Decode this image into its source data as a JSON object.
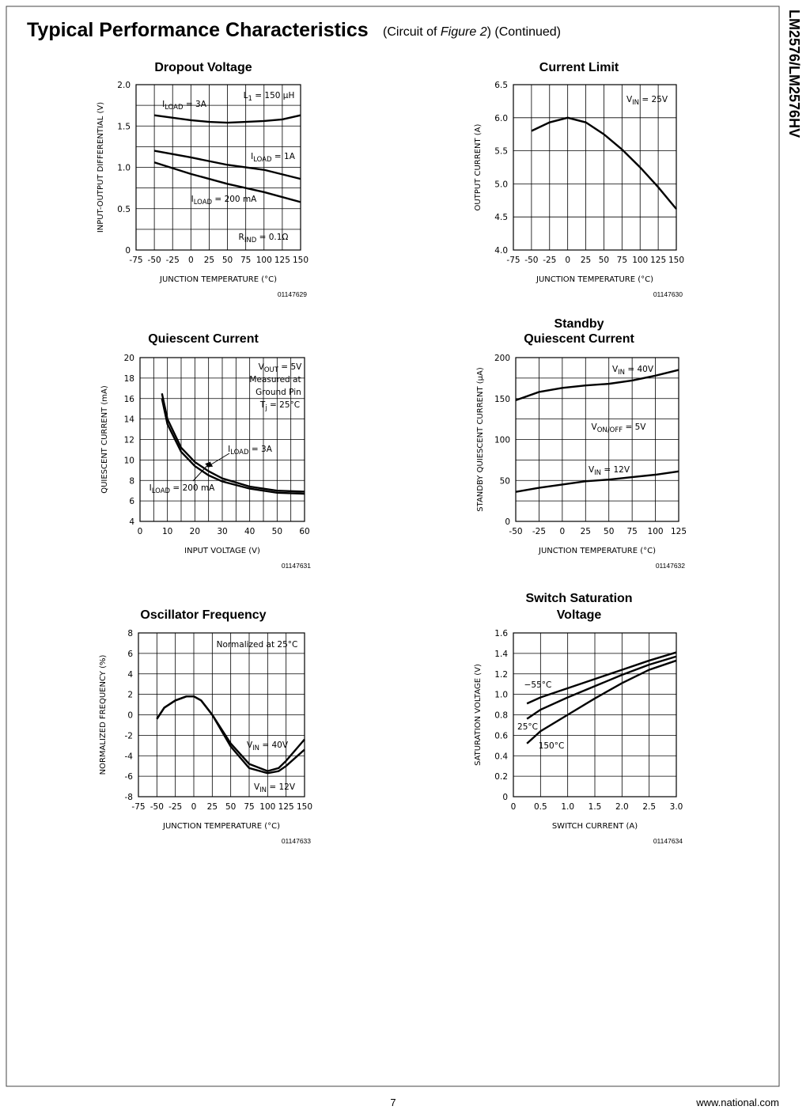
{
  "header": {
    "title": "Typical Performance Characteristics",
    "subtitle": [
      "(Circuit of ",
      "Figure 2",
      ")  (Continued)"
    ]
  },
  "side_label": "LM2576/LM2576HV",
  "footer": {
    "page": "7",
    "site": "www.national.com"
  },
  "chart_data": [
    {
      "type": "line",
      "title": [
        "Dropout Voltage"
      ],
      "xlabel": "JUNCTION TEMPERATURE (°C)",
      "ylabel": "INPUT-OUTPUT DIFFERENTIAL (V)",
      "figure": "01147629",
      "xlim": [
        -75,
        150
      ],
      "ylim": [
        0,
        2
      ],
      "xticks": [
        -75,
        -50,
        -25,
        0,
        25,
        50,
        75,
        100,
        125,
        150
      ],
      "yticks": [
        0,
        0.5,
        {
          "value": 1,
          "label": "1.0"
        },
        1.5,
        {
          "value": 2,
          "label": "2.0"
        }
      ],
      "grid": {
        "x": "major",
        "y": "minor"
      },
      "series": [
        {
          "color": "#000000",
          "x": [
            -50,
            -25,
            0,
            25,
            50,
            75,
            100,
            125,
            150
          ],
          "values": [
            1.63,
            1.6,
            1.57,
            1.55,
            1.54,
            1.55,
            1.56,
            1.58,
            1.63
          ]
        },
        {
          "color": "#000000",
          "x": [
            -50,
            0,
            50,
            100,
            150
          ],
          "values": [
            1.2,
            1.12,
            1.03,
            0.97,
            0.86
          ]
        },
        {
          "color": "#000000",
          "x": [
            -50,
            0,
            50,
            100,
            150
          ],
          "values": [
            1.06,
            0.92,
            0.8,
            0.7,
            0.58
          ]
        }
      ],
      "annotations": [
        {
          "parts": [
            "L",
            "1",
            "  =  150 µH"
          ]
        },
        {
          "parts": [
            "I",
            "LOAD",
            " = 3A"
          ]
        },
        {
          "parts": [
            "I",
            "LOAD",
            " = 1A"
          ]
        },
        {
          "parts": [
            "I",
            "LOAD",
            " = 200 mA"
          ]
        },
        {
          "parts": [
            "R",
            "IND",
            " = 0.1Ω"
          ]
        }
      ]
    },
    {
      "type": "line",
      "title": [
        "Current Limit"
      ],
      "xlabel": "JUNCTION TEMPERATURE (°C)",
      "ylabel": "OUTPUT CURRENT (A)",
      "figure": "01147630",
      "xlim": [
        -75,
        150
      ],
      "ylim": [
        4,
        6.5
      ],
      "xticks": [
        -75,
        -50,
        -25,
        0,
        25,
        50,
        75,
        100,
        125,
        150
      ],
      "yticks": [
        {
          "value": 4,
          "label": "4.0"
        },
        4.5,
        {
          "value": 5,
          "label": "5.0"
        },
        5.5,
        {
          "value": 6,
          "label": "6.0"
        },
        6.5
      ],
      "grid": {
        "x": "major",
        "y": "major"
      },
      "series": [
        {
          "color": "#000000",
          "x": [
            -50,
            -25,
            0,
            25,
            50,
            75,
            100,
            125,
            150
          ],
          "values": [
            5.8,
            5.93,
            6.0,
            5.93,
            5.75,
            5.52,
            5.25,
            4.95,
            4.62
          ]
        }
      ],
      "annotations": [
        {
          "parts": [
            "V",
            "IN",
            "  =  25V"
          ]
        }
      ]
    },
    {
      "type": "line",
      "title": [
        "Quiescent Current"
      ],
      "xlabel": "INPUT VOLTAGE (V)",
      "ylabel": "QUIESCENT CURRENT (mA)",
      "figure": "01147631",
      "xlim": [
        0,
        60
      ],
      "ylim": [
        4,
        20
      ],
      "xticks": [
        0,
        10,
        20,
        30,
        40,
        50,
        60
      ],
      "yticks": [
        4,
        6,
        8,
        10,
        12,
        14,
        16,
        18,
        20
      ],
      "grid": {
        "x": "minor",
        "y": "major"
      },
      "series": [
        {
          "color": "#000000",
          "x": [
            8,
            10,
            15,
            20,
            25,
            30,
            40,
            50,
            60
          ],
          "values": [
            16.5,
            14,
            11.2,
            9.8,
            8.9,
            8.2,
            7.4,
            7.0,
            6.9
          ]
        },
        {
          "color": "#000000",
          "x": [
            8,
            10,
            15,
            20,
            25,
            30,
            40,
            50,
            60
          ],
          "values": [
            16,
            13.5,
            10.8,
            9.4,
            8.5,
            7.9,
            7.2,
            6.8,
            6.7
          ]
        }
      ],
      "annotations": [
        {
          "parts": [
            "V",
            "OUT",
            " = 5V"
          ]
        },
        {
          "parts": [
            "Measured at"
          ]
        },
        {
          "parts": [
            "Ground Pin"
          ]
        },
        {
          "parts": [
            "T",
            "j",
            " = 25°C"
          ]
        },
        {
          "parts": [
            "I",
            "LOAD",
            " = 3A"
          ]
        },
        {
          "parts": [
            "I",
            "LOAD",
            " = 200 mA"
          ]
        }
      ]
    },
    {
      "type": "line",
      "title": [
        "Standby",
        "Quiescent Current"
      ],
      "xlabel": "JUNCTION TEMPERATURE (°C)",
      "ylabel": "STANDBY QUIESCENT CURRENT (µA)",
      "figure": "01147632",
      "xlim": [
        -50,
        125
      ],
      "ylim": [
        0,
        200
      ],
      "xticks": [
        -50,
        -25,
        0,
        25,
        50,
        75,
        100,
        125
      ],
      "yticks": [
        0,
        50,
        100,
        150,
        200
      ],
      "grid": {
        "x": "major",
        "y": "minor"
      },
      "series": [
        {
          "color": "#000000",
          "x": [
            -50,
            -25,
            0,
            25,
            50,
            75,
            100,
            125
          ],
          "values": [
            148,
            158,
            163,
            166,
            168,
            172,
            178,
            185
          ]
        },
        {
          "color": "#000000",
          "x": [
            -50,
            -25,
            0,
            25,
            50,
            75,
            100,
            125
          ],
          "values": [
            36,
            41,
            45,
            49,
            51,
            54,
            57,
            61
          ]
        }
      ],
      "annotations": [
        {
          "parts": [
            "V",
            "IN",
            " = 40V"
          ]
        },
        {
          "parts": [
            "V",
            "ON/OFF",
            " = 5V"
          ]
        },
        {
          "parts": [
            "V",
            "IN",
            " = 12V"
          ]
        }
      ]
    },
    {
      "type": "line",
      "title": [
        "Oscillator Frequency"
      ],
      "xlabel": "JUNCTION TEMPERATURE (°C)",
      "ylabel": "NORMALIZED FREQUENCY (%)",
      "figure": "01147633",
      "xlim": [
        -75,
        150
      ],
      "ylim": [
        -8,
        8
      ],
      "xticks": [
        -75,
        -50,
        -25,
        0,
        25,
        50,
        75,
        100,
        125,
        150
      ],
      "yticks": [
        -8,
        -6,
        -4,
        -2,
        0,
        2,
        4,
        6,
        8
      ],
      "grid": {
        "x": "major",
        "y": "major"
      },
      "series": [
        {
          "color": "#000000",
          "x": [
            -50,
            -40,
            -25,
            -10,
            0,
            10,
            25,
            50,
            75,
            100,
            115,
            125,
            150
          ],
          "values": [
            -0.4,
            0.7,
            1.4,
            1.8,
            1.8,
            1.4,
            0,
            -2.8,
            -4.8,
            -5.5,
            -5.2,
            -4.5,
            -2.4
          ]
        },
        {
          "color": "#000000",
          "x": [
            -50,
            -40,
            -25,
            -10,
            0,
            10,
            25,
            50,
            75,
            100,
            115,
            125,
            150
          ],
          "values": [
            -0.4,
            0.7,
            1.4,
            1.8,
            1.8,
            1.4,
            0,
            -3.1,
            -5.2,
            -5.7,
            -5.5,
            -5.0,
            -3.4
          ]
        }
      ],
      "annotations": [
        {
          "parts": [
            "Normalized at 25°C"
          ]
        },
        {
          "parts": [
            "V",
            "IN",
            " = 40V"
          ]
        },
        {
          "parts": [
            "V",
            "IN",
            " = 12V"
          ]
        }
      ]
    },
    {
      "type": "line",
      "title": [
        "Switch Saturation",
        "Voltage"
      ],
      "xlabel": "SWITCH CURRENT (A)",
      "ylabel": "SATURATION VOLTAGE (V)",
      "figure": "01147634",
      "xlim": [
        0,
        3
      ],
      "ylim": [
        0,
        1.6
      ],
      "xticks": [
        0,
        0.5,
        {
          "value": 1,
          "label": "1.0"
        },
        1.5,
        {
          "value": 2,
          "label": "2.0"
        },
        2.5,
        {
          "value": 3,
          "label": "3.0"
        }
      ],
      "yticks": [
        0,
        0.2,
        0.4,
        0.6,
        0.8,
        {
          "value": 1,
          "label": "1.0"
        },
        1.2,
        1.4,
        1.6
      ],
      "grid": {
        "x": "major",
        "y": "major"
      },
      "series": [
        {
          "color": "#000000",
          "x": [
            0.25,
            0.5,
            1,
            1.5,
            2,
            2.5,
            3
          ],
          "values": [
            0.91,
            0.97,
            1.06,
            1.15,
            1.24,
            1.33,
            1.41
          ]
        },
        {
          "color": "#000000",
          "x": [
            0.25,
            0.5,
            1,
            1.5,
            2,
            2.5,
            3
          ],
          "values": [
            0.76,
            0.85,
            0.97,
            1.08,
            1.19,
            1.29,
            1.37
          ]
        },
        {
          "color": "#000000",
          "x": [
            0.25,
            0.5,
            1,
            1.5,
            2,
            2.5,
            3
          ],
          "values": [
            0.52,
            0.64,
            0.8,
            0.96,
            1.11,
            1.24,
            1.33
          ]
        }
      ],
      "annotations": [
        {
          "parts": [
            "−55°C"
          ]
        },
        {
          "parts": [
            "25°C"
          ]
        },
        {
          "parts": [
            "150°C"
          ]
        }
      ]
    }
  ]
}
